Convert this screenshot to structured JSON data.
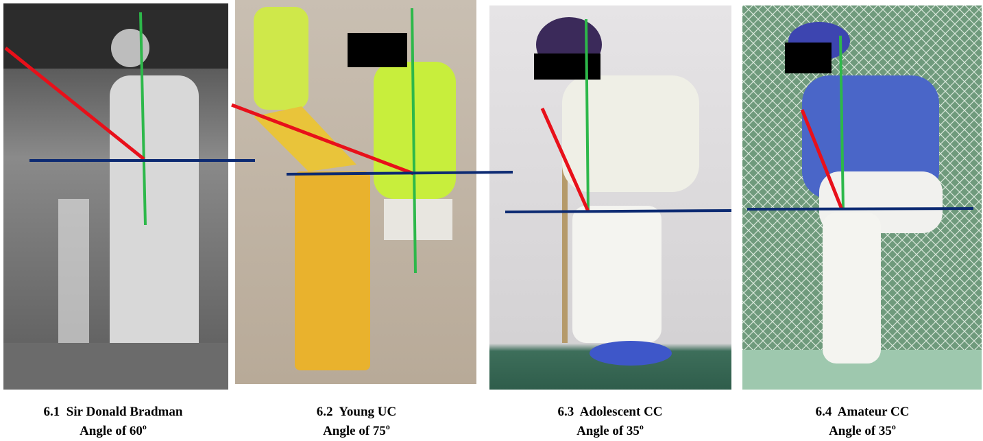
{
  "figure": {
    "panels": [
      {
        "label": "6.1  Sir Donald Bradman",
        "angle": "Angle of 60",
        "degree": "o"
      },
      {
        "label": "6.2  Young UC",
        "angle": "Angle of 75",
        "degree": "o"
      },
      {
        "label": "6.3  Adolescent CC",
        "angle": "Angle of 35",
        "degree": "o"
      },
      {
        "label": "6.4  Amateur CC",
        "angle": "Angle of 35",
        "degree": "o"
      }
    ]
  }
}
